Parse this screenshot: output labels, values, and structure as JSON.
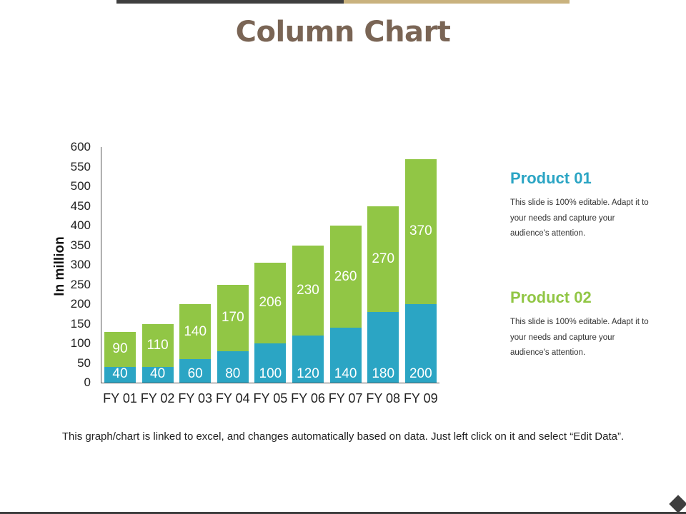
{
  "slide": {
    "title": "Column Chart",
    "footnote": "This graph/chart is linked to excel, and changes automatically based on data. Just left click on it and select “Edit Data”.",
    "colors": {
      "title": "#7a6555",
      "topbar_dark": "#3f3f3f",
      "topbar_gold": "#c9b27e",
      "product01": "#2ba5c4",
      "product02": "#91c645"
    }
  },
  "legend": {
    "product01": {
      "title": "Product 01",
      "description": "This slide is 100% editable. Adapt it to your needs and capture your audience's attention."
    },
    "product02": {
      "title": "Product 02",
      "description": "This slide is 100% editable. Adapt it to your needs and capture your audience's attention."
    }
  },
  "chart_data": {
    "type": "bar",
    "stacked": true,
    "title": "Column Chart",
    "xlabel": "",
    "ylabel": "In million",
    "ylim": [
      0,
      600
    ],
    "yticks": [
      0,
      50,
      100,
      150,
      200,
      250,
      300,
      350,
      400,
      450,
      500,
      550,
      600
    ],
    "grid": false,
    "legend_position": "right (text blocks)",
    "categories": [
      "FY 01",
      "FY 02",
      "FY 03",
      "FY 04",
      "FY 05",
      "FY 06",
      "FY 07",
      "FY 08",
      "FY 09"
    ],
    "series": [
      {
        "name": "Product 01",
        "color": "#2ba5c4",
        "values": [
          40,
          40,
          60,
          80,
          100,
          120,
          140,
          180,
          200
        ]
      },
      {
        "name": "Product 02",
        "color": "#91c645",
        "values": [
          90,
          110,
          140,
          170,
          206,
          230,
          260,
          270,
          370
        ]
      }
    ]
  }
}
